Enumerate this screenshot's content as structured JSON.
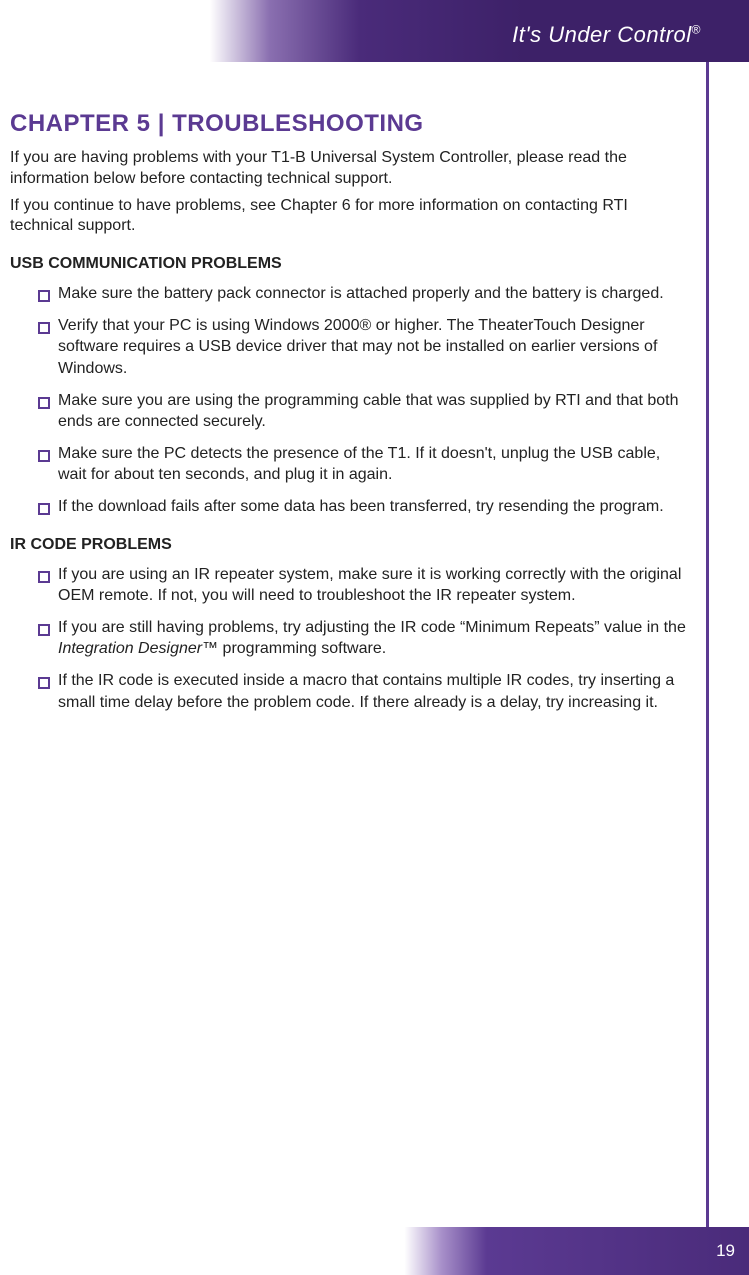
{
  "header": {
    "tagline": "It's Under Control",
    "tagline_mark": "®"
  },
  "chapter": {
    "title": "CHAPTER 5   |   TROUBLESHOOTING",
    "intro1": "If you are having problems with your T1-B Universal System Controller, please read the information below before contacting technical support.",
    "intro2": "If you continue to have problems, see Chapter 6 for more information on contacting RTI technical support."
  },
  "sections": [
    {
      "heading": "USB COMMUNICATION PROBLEMS",
      "items": [
        "Make sure the battery pack connector is attached properly and the battery is charged.",
        "Verify that your PC is using Windows 2000® or higher. The TheaterTouch Designer software requires a USB device driver that may not be installed on earlier versions of Windows.",
        "Make sure you are using the programming cable that was supplied by RTI and that both ends are connected securely.",
        "Make sure the PC detects the presence of the T1. If it doesn't, unplug the USB cable, wait for about ten seconds, and plug it in again.",
        "If the download fails after some data has been transferred, try resending the program."
      ]
    },
    {
      "heading": "IR CODE PROBLEMS",
      "items": [
        "If you are using an IR repeater system, make sure it is working correctly with the original OEM remote. If not, you will need to troubleshoot the IR repeater system.",
        "If you are still having problems, try adjusting the IR code “Minimum Repeats” value in the Integration Designer™ programming software.",
        "If the IR code is executed inside a macro that contains multiple IR codes, try inserting a small time delay before the problem code. If there already is a delay, try increasing it."
      ]
    }
  ],
  "page_number": "19",
  "colors": {
    "brand_purple": "#5b3a92",
    "dark_purple": "#3d2168",
    "text": "#222222",
    "white": "#ffffff"
  }
}
